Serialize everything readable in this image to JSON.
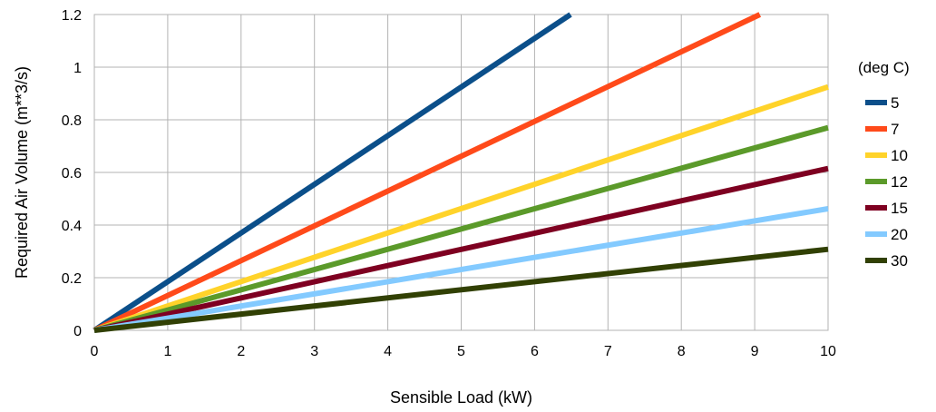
{
  "chart_data": {
    "type": "line",
    "xlabel": "Sensible Load (kW)",
    "ylabel": "Required Air Volume (m**3/s)",
    "xlim": [
      0,
      10
    ],
    "ylim": [
      0,
      1.2
    ],
    "x_ticks": [
      "0",
      "1",
      "2",
      "3",
      "4",
      "5",
      "6",
      "7",
      "8",
      "9",
      "10"
    ],
    "y_ticks": [
      "0",
      "0.2",
      "0.4",
      "0.6",
      "0.8",
      "1",
      "1.2"
    ],
    "grid": true,
    "legend_title": "(deg C)",
    "legend_position": "right",
    "series": [
      {
        "name": "5",
        "color": "#0b4f8a",
        "x": [
          0,
          6.49
        ],
        "y": [
          0,
          1.2
        ]
      },
      {
        "name": "7",
        "color": "#ff4a1a",
        "x": [
          0,
          9.07
        ],
        "y": [
          0,
          1.2
        ]
      },
      {
        "name": "10",
        "color": "#ffd32a",
        "x": [
          0,
          10
        ],
        "y": [
          0,
          0.925
        ]
      },
      {
        "name": "12",
        "color": "#5b9a2a",
        "x": [
          0,
          10
        ],
        "y": [
          0,
          0.77
        ]
      },
      {
        "name": "15",
        "color": "#7e0021",
        "x": [
          0,
          10
        ],
        "y": [
          0,
          0.615
        ]
      },
      {
        "name": "20",
        "color": "#83caff",
        "x": [
          0,
          10
        ],
        "y": [
          0,
          0.462
        ]
      },
      {
        "name": "30",
        "color": "#314004",
        "x": [
          0,
          10
        ],
        "y": [
          0,
          0.308
        ]
      }
    ]
  }
}
